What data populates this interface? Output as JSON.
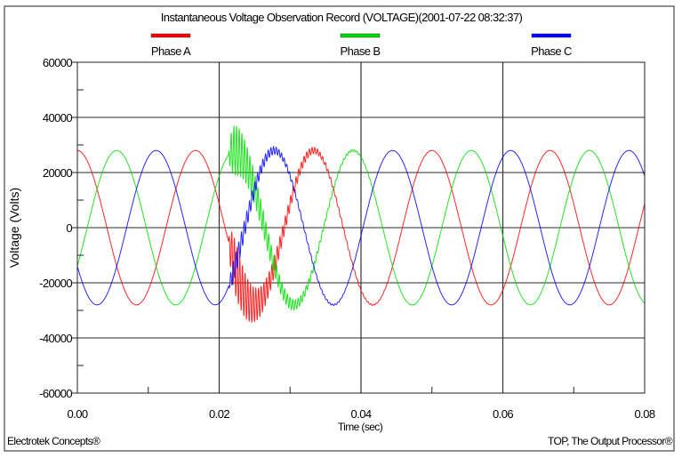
{
  "chart_data": {
    "type": "line",
    "title": "Instantaneous Voltage Observation Record (VOLTAGE)(2001-07-22 08:32:37)",
    "xlabel": "Time (sec)",
    "ylabel": "Voltage (Volts)",
    "xlim": [
      0,
      0.08
    ],
    "ylim": [
      -60000,
      60000
    ],
    "x_ticks": [
      "0.00",
      "0.02",
      "0.04",
      "0.06",
      "0.08"
    ],
    "x_tick_values": [
      0,
      0.02,
      0.04,
      0.06,
      0.08
    ],
    "x_minor_tick_values": [
      0.01,
      0.03,
      0.05,
      0.07
    ],
    "y_ticks": [
      "60000",
      "40000",
      "20000",
      "0",
      "-20000",
      "-40000",
      "-60000"
    ],
    "y_tick_values": [
      60000,
      40000,
      20000,
      0,
      -20000,
      -40000,
      -60000
    ],
    "y_minor_tick_values": [
      50000,
      30000,
      10000,
      -10000,
      -30000,
      -50000
    ],
    "grid": true,
    "legend_placement": "top",
    "series": [
      {
        "name": "Phase A",
        "color": "#ff0000",
        "amplitude": 28000,
        "frequency_hz": 60,
        "phase_deg": 0,
        "transient": {
          "start": 0.0213,
          "frequency_hz": 2650,
          "amplitude": 13000,
          "decay_s": 0.005
        }
      },
      {
        "name": "Phase B",
        "color": "#00dd00",
        "amplitude": 28000,
        "frequency_hz": 60,
        "phase_deg": -120,
        "transient": {
          "start": 0.0213,
          "frequency_hz": 2650,
          "amplitude": 12000,
          "decay_s": 0.005
        }
      },
      {
        "name": "Phase C",
        "color": "#0000ff",
        "amplitude": 28000,
        "frequency_hz": 60,
        "phase_deg": 120,
        "transient": {
          "start": 0.0213,
          "frequency_hz": 2650,
          "amplitude": 5000,
          "decay_s": 0.005
        }
      }
    ]
  },
  "footer": {
    "left": "Electrotek Concepts®",
    "right": "TOP, The Output Processor®"
  }
}
